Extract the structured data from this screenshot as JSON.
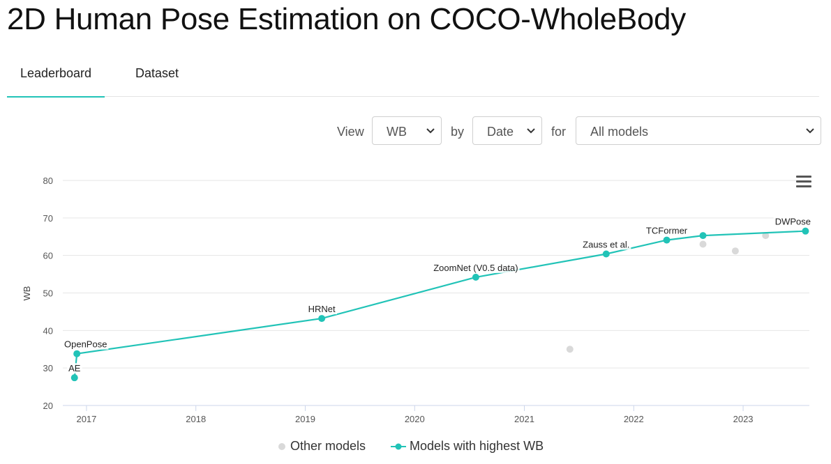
{
  "page": {
    "title": "2D Human Pose Estimation on COCO-WholeBody"
  },
  "tabs": [
    {
      "label": "Leaderboard",
      "active": true
    },
    {
      "label": "Dataset",
      "active": false
    }
  ],
  "filters": {
    "view_label": "View",
    "view_value": "WB",
    "by_label": "by",
    "by_value": "Date",
    "for_label": "for",
    "for_value": "All models"
  },
  "colors": {
    "accent": "#21c3b7",
    "other": "#d9d9d9",
    "grid": "#e6e6e6"
  },
  "icons": {
    "menu": "hamburger-menu-icon",
    "select": "chevron-down-icon"
  },
  "legend": {
    "other": "Other models",
    "best": "Models with highest WB"
  },
  "chart_data": {
    "type": "line",
    "ylabel": "WB",
    "xlabel": "",
    "ylim": [
      20,
      80
    ],
    "yticks": [
      20,
      30,
      40,
      50,
      60,
      70,
      80
    ],
    "xlim": [
      "2016-10-14",
      "2023-08-10"
    ],
    "xticks": [
      {
        "date": "2017-01-01",
        "label": "2017"
      },
      {
        "date": "2018-01-01",
        "label": "2018"
      },
      {
        "date": "2019-01-01",
        "label": "2019"
      },
      {
        "date": "2020-01-01",
        "label": "2020"
      },
      {
        "date": "2021-01-01",
        "label": "2021"
      },
      {
        "date": "2022-01-01",
        "label": "2022"
      },
      {
        "date": "2023-01-01",
        "label": "2023"
      }
    ],
    "grid": true,
    "legend_position": "bottom",
    "series": [
      {
        "name": "Models with highest WB",
        "points": [
          {
            "date": "2016-11-22",
            "value": 27.4,
            "label": "AE"
          },
          {
            "date": "2016-11-30",
            "value": 33.8,
            "label": "OpenPose"
          },
          {
            "date": "2019-02-25",
            "value": 43.2,
            "label": "HRNet"
          },
          {
            "date": "2020-07-23",
            "value": 54.2,
            "label": "ZoomNet (V0.5 data)"
          },
          {
            "date": "2021-10-01",
            "value": 60.4,
            "label": "Zauss et al."
          },
          {
            "date": "2022-04-21",
            "value": 64.1,
            "label": "TCFormer"
          },
          {
            "date": "2022-08-20",
            "value": 65.3,
            "label": ""
          },
          {
            "date": "2023-07-28",
            "value": 66.5,
            "label": "DWPose"
          }
        ]
      },
      {
        "name": "Other models",
        "points": [
          {
            "date": "2021-06-02",
            "value": 35.0
          },
          {
            "date": "2022-08-20",
            "value": 63.0
          },
          {
            "date": "2022-12-06",
            "value": 61.2
          },
          {
            "date": "2023-03-17",
            "value": 65.3
          }
        ]
      }
    ]
  }
}
